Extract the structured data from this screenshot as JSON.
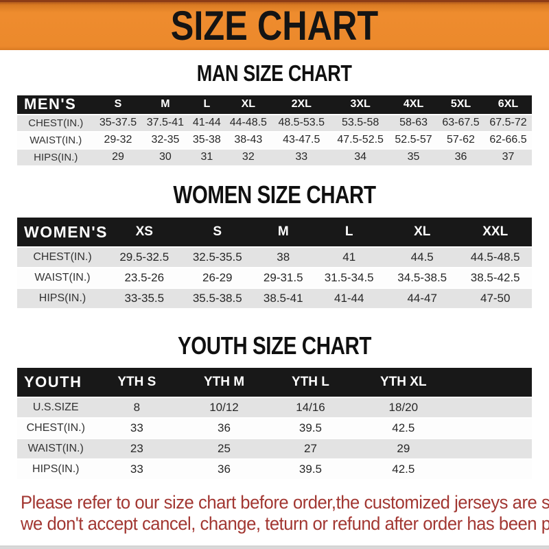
{
  "banner": {
    "title": "SIZE CHART"
  },
  "colors": {
    "banner_orange": "#ec892c",
    "banner_top_border": "#8d3c16",
    "table_header_bar": "#181818",
    "row_gray": "#e3e3e3",
    "row_white": "#fdfdfd",
    "notice_red": "#a23732"
  },
  "tables": [
    {
      "heading": "MAN SIZE CHART",
      "corner": "MEN'S",
      "columns": [
        "S",
        "M",
        "L",
        "XL",
        "2XL",
        "3XL",
        "4XL",
        "5XL",
        "6XL"
      ],
      "trailing_empty_col": false,
      "rows": [
        {
          "label": "CHEST(IN.)",
          "values": [
            "35-37.5",
            "37.5-41",
            "41-44",
            "44-48.5",
            "48.5-53.5",
            "53.5-58",
            "58-63",
            "63-67.5",
            "67.5-72"
          ]
        },
        {
          "label": "WAIST(IN.)",
          "values": [
            "29-32",
            "32-35",
            "35-38",
            "38-43",
            "43-47.5",
            "47.5-52.5",
            "52.5-57",
            "57-62",
            "62-66.5"
          ]
        },
        {
          "label": "HIPS(IN.)",
          "values": [
            "29",
            "30",
            "31",
            "32",
            "33",
            "34",
            "35",
            "36",
            "37"
          ]
        }
      ]
    },
    {
      "heading": "WOMEN SIZE CHART",
      "corner": "WOMEN'S",
      "columns": [
        "XS",
        "S",
        "M",
        "L",
        "XL",
        "XXL"
      ],
      "trailing_empty_col": false,
      "rows": [
        {
          "label": "CHEST(IN.)",
          "values": [
            "29.5-32.5",
            "32.5-35.5",
            "38",
            "41",
            "44.5",
            "44.5-48.5"
          ]
        },
        {
          "label": "WAIST(IN.)",
          "values": [
            "23.5-26",
            "26-29",
            "29-31.5",
            "31.5-34.5",
            "34.5-38.5",
            "38.5-42.5"
          ]
        },
        {
          "label": "HIPS(IN.)",
          "values": [
            "33-35.5",
            "35.5-38.5",
            "38.5-41",
            "41-44",
            "44-47",
            "47-50"
          ]
        }
      ]
    },
    {
      "heading": "YOUTH SIZE CHART",
      "corner": "YOUTH",
      "columns": [
        "YTH S",
        "YTH M",
        "YTH L",
        "YTH XL"
      ],
      "trailing_empty_col": true,
      "rows": [
        {
          "label": "U.S.SIZE",
          "values": [
            "8",
            "10/12",
            "14/16",
            "18/20"
          ]
        },
        {
          "label": "CHEST(IN.)",
          "values": [
            "33",
            "36",
            "39.5",
            "42.5"
          ]
        },
        {
          "label": "WAIST(IN.)",
          "values": [
            "23",
            "25",
            "27",
            "29"
          ]
        },
        {
          "label": "HIPS(IN.)",
          "values": [
            "33",
            "36",
            "39.5",
            "42.5"
          ]
        }
      ]
    }
  ],
  "footer": {
    "line1": "Please refer to our size chart before order,the customized jerseys are special products,",
    "line2": "we don't accept cancel, change, teturn or refund after order has been placed!"
  }
}
